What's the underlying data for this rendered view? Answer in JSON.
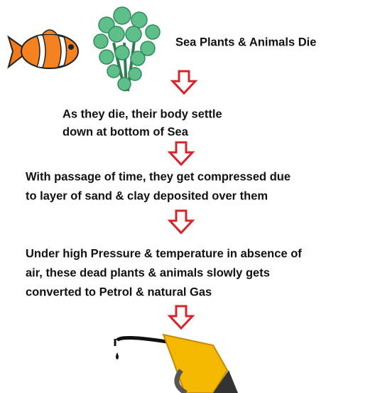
{
  "steps": [
    {
      "lines": [
        "Sea Plants & Animals Die"
      ]
    },
    {
      "lines": [
        "As they die, their body settle",
        "down at bottom of Sea"
      ]
    },
    {
      "lines": [
        "With passage of time, they get compressed due",
        "to layer of sand & clay deposited over them"
      ]
    },
    {
      "lines": [
        "Under high Pressure & temperature in absence of",
        "air, these dead plants & animals slowly gets",
        "converted to Petrol & natural Gas"
      ]
    }
  ]
}
